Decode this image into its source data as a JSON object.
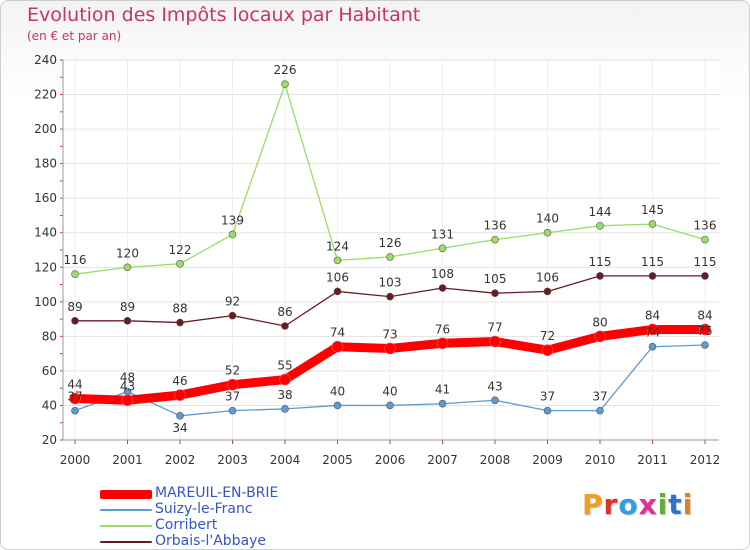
{
  "title": "Evolution des Impôts locaux par Habitant",
  "subtitle": "(en € et par an)",
  "logo": {
    "text": "Proxiti",
    "letters": [
      {
        "ch": "P",
        "color": "#f0a020"
      },
      {
        "ch": "r",
        "color": "#e03030"
      },
      {
        "ch": "o",
        "color": "#30a0e0"
      },
      {
        "ch": "x",
        "color": "#e03090"
      },
      {
        "ch": "i",
        "color": "#60b030"
      },
      {
        "ch": "t",
        "color": "#3070d0"
      },
      {
        "ch": "i",
        "color": "#e08020"
      }
    ]
  },
  "chart_data": {
    "type": "line",
    "title": "Evolution des Impôts locaux par Habitant",
    "subtitle": "(en € et par an)",
    "x": [
      "2000",
      "2001",
      "2002",
      "2003",
      "2004",
      "2005",
      "2006",
      "2007",
      "2008",
      "2009",
      "2010",
      "2011",
      "2012"
    ],
    "ylim": [
      20,
      240
    ],
    "yticks": [
      20,
      40,
      60,
      80,
      100,
      120,
      140,
      160,
      180,
      200,
      220,
      240
    ],
    "grid": true,
    "legend_position": "bottom-left",
    "series": [
      {
        "name": "MAREUIL-EN-BRIE",
        "color": "#ff0000",
        "width": 9,
        "labels": true,
        "values": [
          44,
          43,
          46,
          52,
          55,
          74,
          73,
          76,
          77,
          72,
          80,
          84,
          84
        ]
      },
      {
        "name": "Suizy-le-Franc",
        "color": "#5b9bd5",
        "width": 1.3,
        "labels": true,
        "values": [
          37,
          48,
          34,
          37,
          38,
          40,
          40,
          41,
          43,
          37,
          37,
          74,
          75
        ],
        "label_text": [
          "37",
          "48",
          "34",
          "37",
          "38",
          "40",
          "40",
          "41",
          "43",
          "37",
          "37",
          "74",
          "75"
        ]
      },
      {
        "name": "Corribert",
        "color": "#99dd66",
        "width": 1.3,
        "labels": true,
        "values": [
          116,
          120,
          122,
          139,
          226,
          124,
          126,
          131,
          136,
          140,
          144,
          145,
          136
        ]
      },
      {
        "name": "Orbais-l'Abbaye",
        "color": "#6b1a24",
        "width": 1.3,
        "labels": true,
        "values": [
          89,
          89,
          88,
          92,
          86,
          106,
          103,
          108,
          105,
          106,
          115,
          115,
          115
        ]
      }
    ]
  }
}
